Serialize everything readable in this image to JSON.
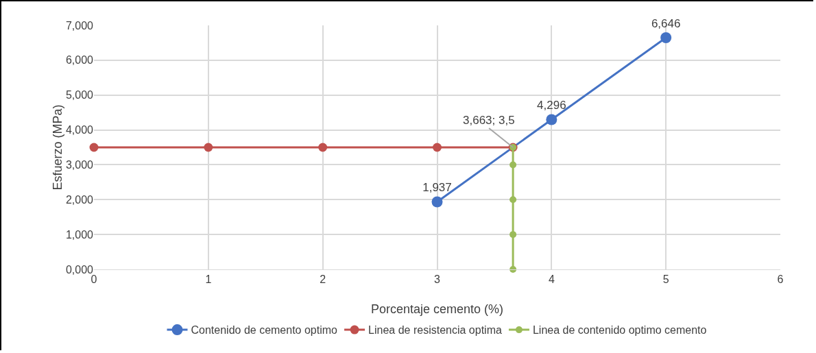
{
  "chart_data": {
    "type": "line",
    "xlabel": "Porcentaje cemento (%)",
    "ylabel": "Esfuerzo (MPa)",
    "xlim": [
      0,
      6
    ],
    "xticks": [
      0,
      1,
      2,
      3,
      4,
      5,
      6
    ],
    "ylim": [
      0,
      7
    ],
    "yticks": [
      {
        "value": 0,
        "label": "0,000"
      },
      {
        "value": 1,
        "label": "1,000"
      },
      {
        "value": 2,
        "label": "2,000"
      },
      {
        "value": 3,
        "label": "3,000"
      },
      {
        "value": 4,
        "label": "4,000"
      },
      {
        "value": 5,
        "label": "5,000"
      },
      {
        "value": 6,
        "label": "6,000"
      },
      {
        "value": 7,
        "label": "7,000"
      }
    ],
    "grid": true,
    "legend": "bottom",
    "marker": "circle",
    "line_style": "solid",
    "series": [
      {
        "name": "Contenido de cemento optimo",
        "color": "#4472c4",
        "x": [
          3,
          4,
          5
        ],
        "values": [
          1.937,
          4.296,
          6.646
        ],
        "value_labels": [
          "1,937",
          "4,296",
          "6,646"
        ]
      },
      {
        "name": "Linea de resistencia optima",
        "color": "#c0504d",
        "x": [
          0,
          1,
          2,
          3,
          3.663
        ],
        "values": [
          3.5,
          3.5,
          3.5,
          3.5,
          3.5
        ]
      },
      {
        "name": "Linea de contenido optimo cemento",
        "color": "#9bbb59",
        "x": [
          3.663,
          3.663,
          3.663,
          3.663,
          3.663
        ],
        "values": [
          0,
          1,
          2,
          3,
          3.5
        ]
      }
    ],
    "annotations": [
      {
        "text": "3,663; 3,5",
        "x": 3.663,
        "y": 3.5
      }
    ]
  }
}
